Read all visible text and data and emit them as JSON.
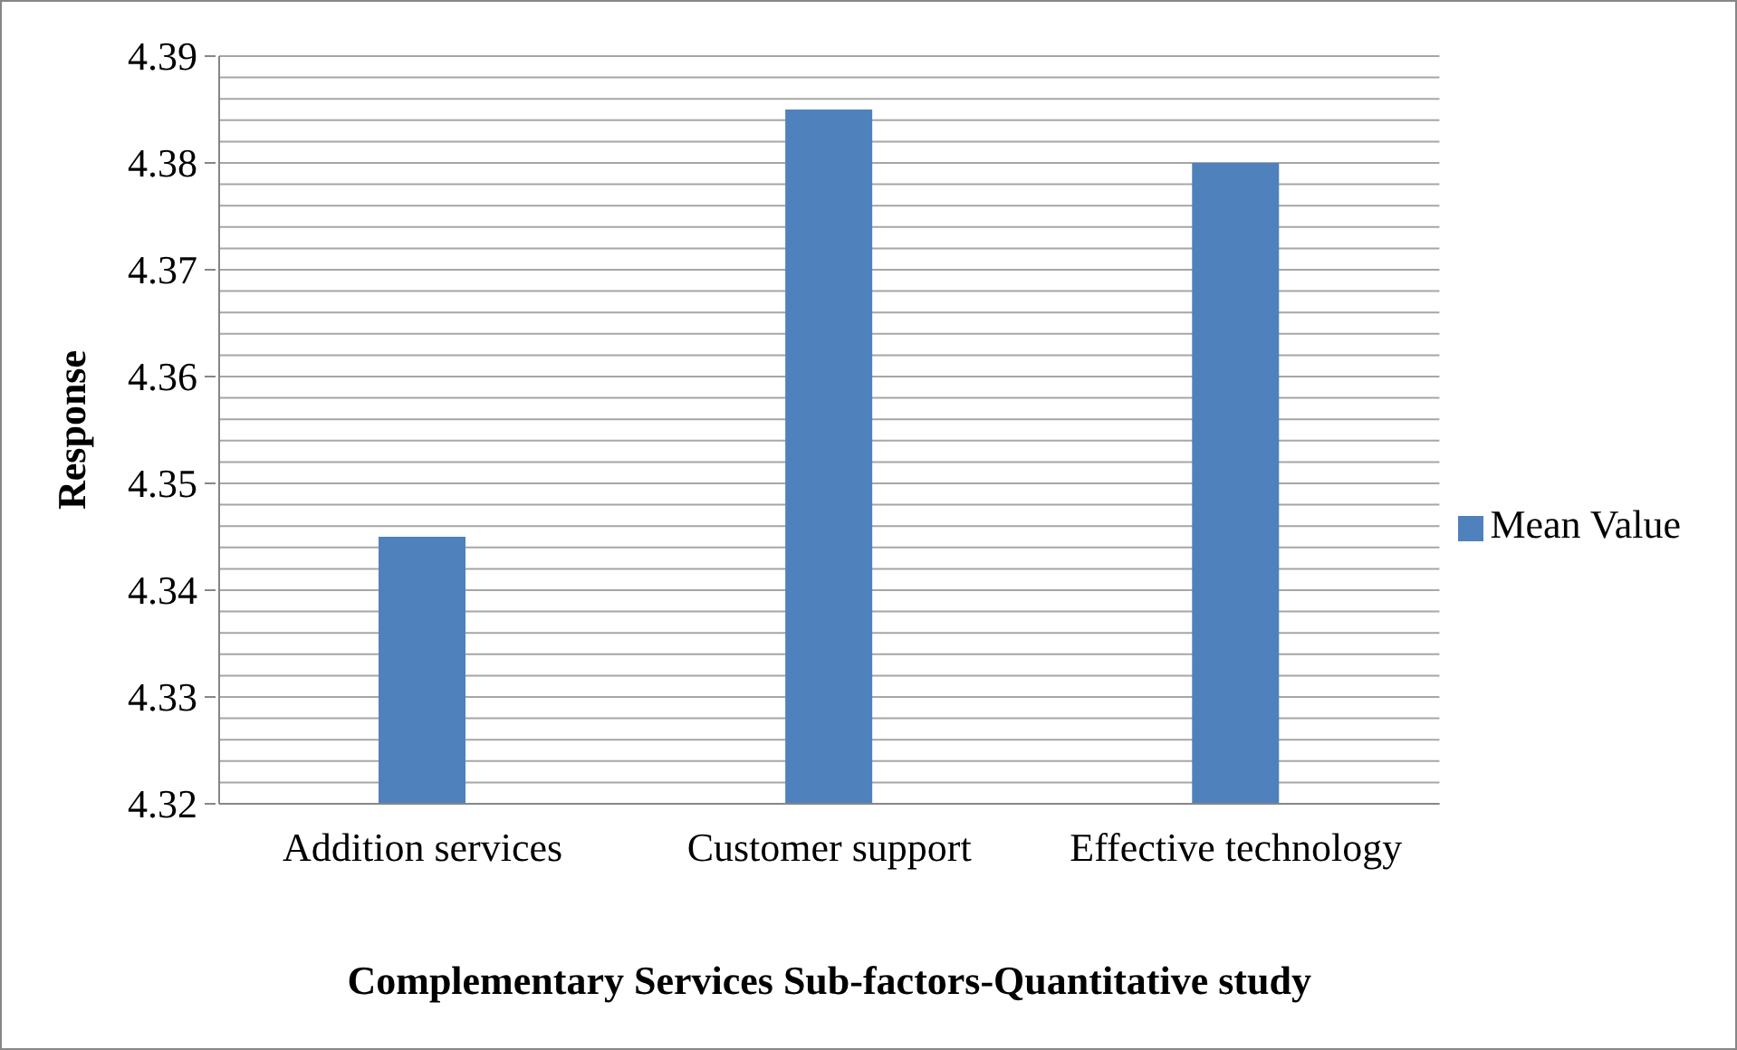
{
  "chart_data": {
    "type": "bar",
    "xlabel": "Complementary Services Sub-factors-Quantitative study",
    "ylabel": "Response",
    "categories": [
      "Addition services",
      "Customer support",
      "Effective technology"
    ],
    "series": [
      {
        "name": "Mean Value",
        "color": "#4f81bd",
        "values": [
          4.345,
          4.385,
          4.38
        ]
      }
    ],
    "ylim": [
      4.32,
      4.39
    ],
    "yticks": [
      4.32,
      {
        "value": 4.322,
        "label": null
      },
      {
        "value": 4.324,
        "label": null
      },
      {
        "value": 4.326,
        "label": null
      },
      {
        "value": 4.328,
        "label": null
      },
      4.33,
      {
        "value": 4.332,
        "label": null
      },
      {
        "value": 4.334,
        "label": null
      },
      {
        "value": 4.336,
        "label": null
      },
      {
        "value": 4.338,
        "label": null
      },
      4.34,
      {
        "value": 4.342,
        "label": null
      },
      {
        "value": 4.344,
        "label": null
      },
      {
        "value": 4.346,
        "label": null
      },
      {
        "value": 4.348,
        "label": null
      },
      4.35,
      {
        "value": 4.352,
        "label": null
      },
      {
        "value": 4.354,
        "label": null
      },
      {
        "value": 4.356,
        "label": null
      },
      {
        "value": 4.358,
        "label": null
      },
      4.36,
      {
        "value": 4.362,
        "label": null
      },
      {
        "value": 4.364,
        "label": null
      },
      {
        "value": 4.366,
        "label": null
      },
      {
        "value": 4.368,
        "label": null
      },
      4.37,
      {
        "value": 4.372,
        "label": null
      },
      {
        "value": 4.374,
        "label": null
      },
      {
        "value": 4.376,
        "label": null
      },
      {
        "value": 4.378,
        "label": null
      },
      4.38,
      {
        "value": 4.382,
        "label": null
      },
      {
        "value": 4.384,
        "label": null
      },
      {
        "value": 4.386,
        "label": null
      },
      {
        "value": 4.388,
        "label": null
      },
      4.39
    ],
    "grid": "y",
    "legend": "right"
  }
}
